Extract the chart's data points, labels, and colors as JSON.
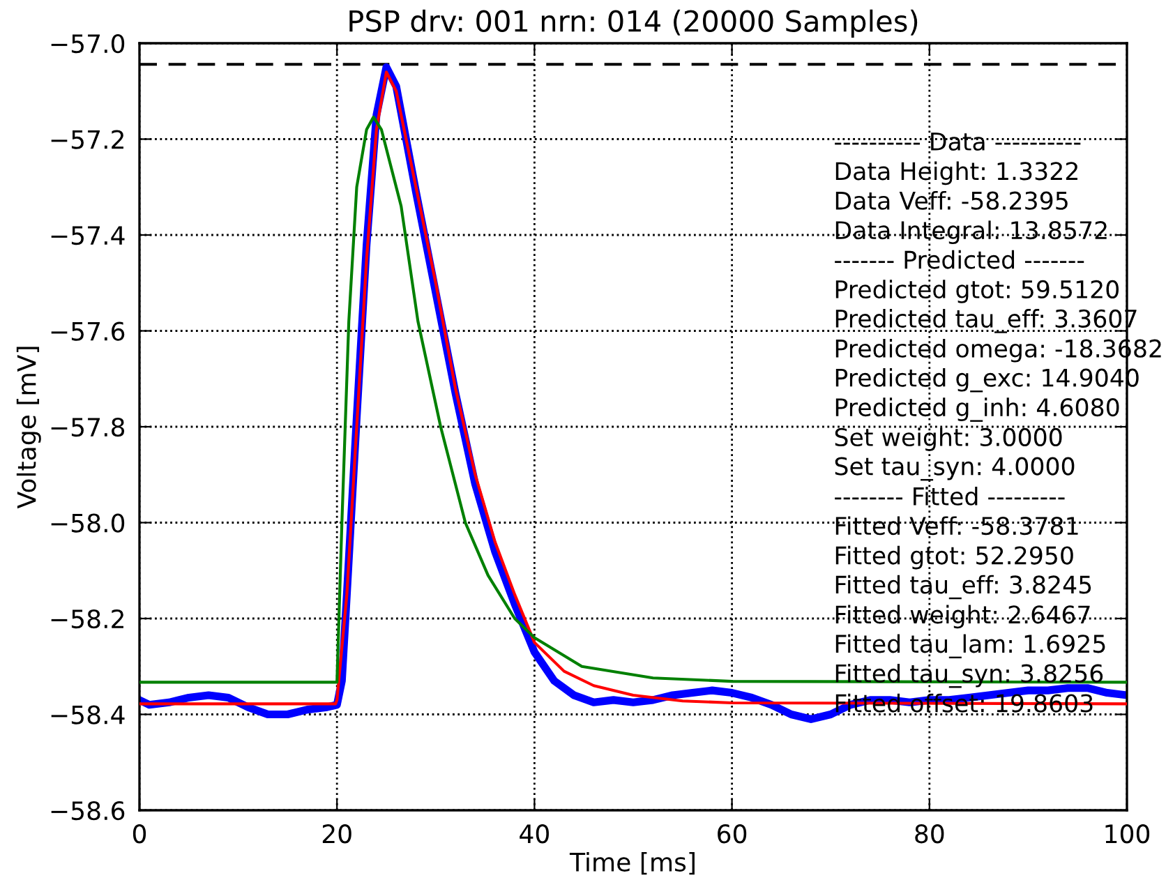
{
  "chart_data": {
    "type": "line",
    "title": "PSP drv: 001 nrn: 014 (20000 Samples)",
    "xlabel": "Time [ms]",
    "ylabel": "Voltage [mV]",
    "xlim": [
      0,
      100
    ],
    "ylim": [
      -58.6,
      -57.0
    ],
    "xticks": [
      0,
      20,
      40,
      60,
      80,
      100
    ],
    "yticks": [
      {
        "value": -58.6,
        "label": "−58.6"
      },
      {
        "value": -58.4,
        "label": "−58.4"
      },
      {
        "value": -58.2,
        "label": "−58.2"
      },
      {
        "value": -58.0,
        "label": "−58.0"
      },
      {
        "value": -57.8,
        "label": "−57.8"
      },
      {
        "value": -57.6,
        "label": "−57.6"
      },
      {
        "value": -57.4,
        "label": "−57.4"
      },
      {
        "value": -57.2,
        "label": "−57.2"
      },
      {
        "value": -57.0,
        "label": "−57.0"
      }
    ],
    "grid": true,
    "legend": false,
    "marker": "none",
    "line_style": "solid",
    "ref_lines": [
      {
        "axis": "y",
        "value": -57.044,
        "color": "#000000",
        "line_style": "dashed"
      }
    ],
    "series": [
      {
        "color": "#0000ff",
        "x": [
          0,
          1,
          3,
          5,
          7,
          9,
          11,
          13,
          15,
          17,
          19,
          20,
          20.5,
          21,
          22,
          23,
          24,
          25,
          26,
          27,
          28,
          30,
          32,
          34,
          36,
          38,
          40,
          42,
          44,
          46,
          48,
          50,
          52,
          54,
          56,
          58,
          60,
          62,
          64,
          66,
          68,
          70,
          72,
          74,
          76,
          78,
          80,
          82,
          84,
          86,
          88,
          90,
          92,
          94,
          96,
          98,
          100
        ],
        "values": [
          -58.37,
          -58.38,
          -58.375,
          -58.365,
          -58.36,
          -58.365,
          -58.385,
          -58.4,
          -58.4,
          -58.39,
          -58.385,
          -58.38,
          -58.33,
          -58.15,
          -57.78,
          -57.42,
          -57.15,
          -57.05,
          -57.09,
          -57.2,
          -57.31,
          -57.52,
          -57.73,
          -57.92,
          -58.06,
          -58.17,
          -58.27,
          -58.33,
          -58.36,
          -58.375,
          -58.37,
          -58.375,
          -58.37,
          -58.36,
          -58.355,
          -58.35,
          -58.355,
          -58.365,
          -58.38,
          -58.4,
          -58.41,
          -58.4,
          -58.38,
          -58.37,
          -58.37,
          -58.375,
          -58.37,
          -58.37,
          -58.365,
          -58.36,
          -58.355,
          -58.35,
          -58.35,
          -58.345,
          -58.345,
          -58.355,
          -58.36
        ]
      },
      {
        "color": "#ff0000",
        "x": [
          0,
          19.86,
          20,
          21,
          22,
          23,
          24,
          25,
          26,
          27,
          28,
          30,
          32,
          34,
          36,
          38,
          40,
          43,
          46,
          50,
          55,
          60,
          100
        ],
        "values": [
          -58.378,
          -58.378,
          -58.37,
          -58.15,
          -57.8,
          -57.45,
          -57.18,
          -57.06,
          -57.1,
          -57.2,
          -57.3,
          -57.5,
          -57.72,
          -57.9,
          -58.04,
          -58.15,
          -58.25,
          -58.31,
          -58.34,
          -58.36,
          -58.372,
          -58.376,
          -58.378
        ]
      },
      {
        "color": "#008000",
        "x": [
          0,
          19.9,
          20,
          20.5,
          21.2,
          22,
          23,
          23.7,
          24.5,
          26.5,
          28.2,
          30.5,
          33,
          35.3,
          38,
          40,
          44.8,
          52,
          60,
          100
        ],
        "values": [
          -58.333,
          -58.333,
          -58.333,
          -58.0,
          -57.58,
          -57.3,
          -57.18,
          -57.154,
          -57.18,
          -57.34,
          -57.58,
          -57.8,
          -58.0,
          -58.11,
          -58.2,
          -58.24,
          -58.3,
          -58.324,
          -58.331,
          -58.333
        ]
      }
    ],
    "annotations": [
      "---------- Data ----------",
      "Data Height: 1.3322",
      "Data Veff: -58.2395",
      "Data Integral: 13.8572",
      "------- Predicted -------",
      "Predicted gtot: 59.5120",
      "Predicted tau_eff: 3.3607",
      "Predicted omega: -18.3682",
      "Predicted g_exc: 14.9040",
      "Predicted g_inh: 4.6080",
      "Set weight: 3.0000",
      "Set tau_syn: 4.0000",
      "-------- Fitted ---------",
      "Fitted Veff: -58.3781",
      "Fitted gtot: 52.2950",
      "Fitted tau_eff: 3.8245",
      "Fitted weight: 2.6467",
      "Fitted tau_lam: 1.6925",
      "Fitted tau_syn: 3.8256",
      "Fitted offset: 19.8603"
    ]
  }
}
